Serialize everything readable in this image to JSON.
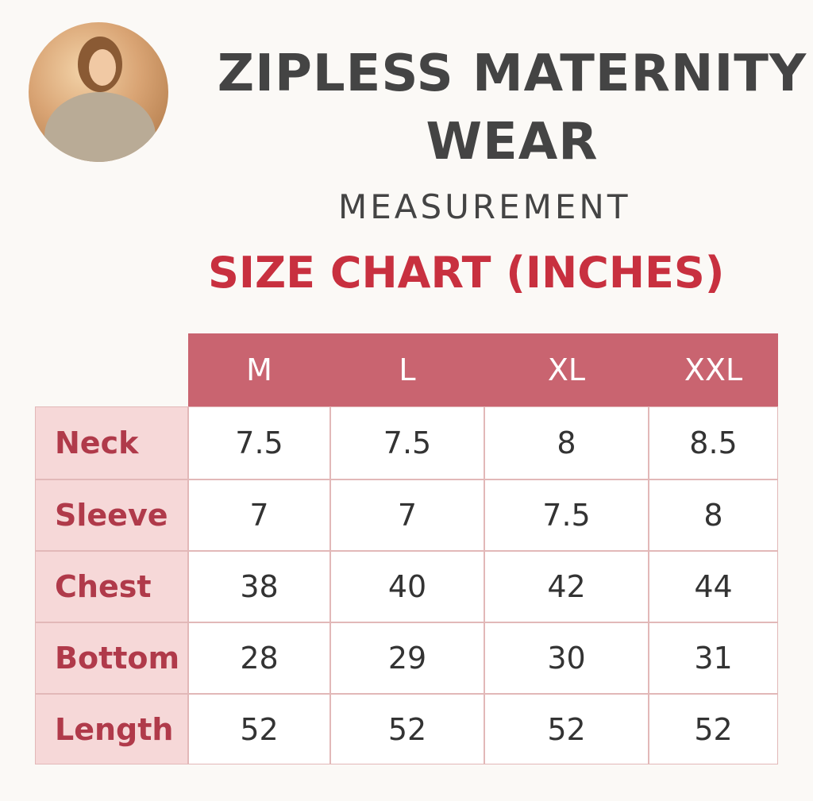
{
  "header": {
    "title": "ZIPLESS MATERNITY WEAR",
    "subtitle": "MEASUREMENT",
    "chart_title": "SIZE CHART (INCHES)"
  },
  "table": {
    "columns": [
      "M",
      "L",
      "XL",
      "XXL"
    ],
    "rows": [
      {
        "label": "Neck",
        "values": [
          7.5,
          7.5,
          8,
          8.5
        ]
      },
      {
        "label": "Sleeve",
        "values": [
          7,
          7,
          7.5,
          8
        ]
      },
      {
        "label": "Chest",
        "values": [
          38,
          40,
          42,
          44
        ]
      },
      {
        "label": "Bottom",
        "values": [
          28,
          29,
          30,
          31
        ]
      },
      {
        "label": "Length",
        "values": [
          52,
          52,
          52,
          52
        ]
      }
    ]
  }
}
